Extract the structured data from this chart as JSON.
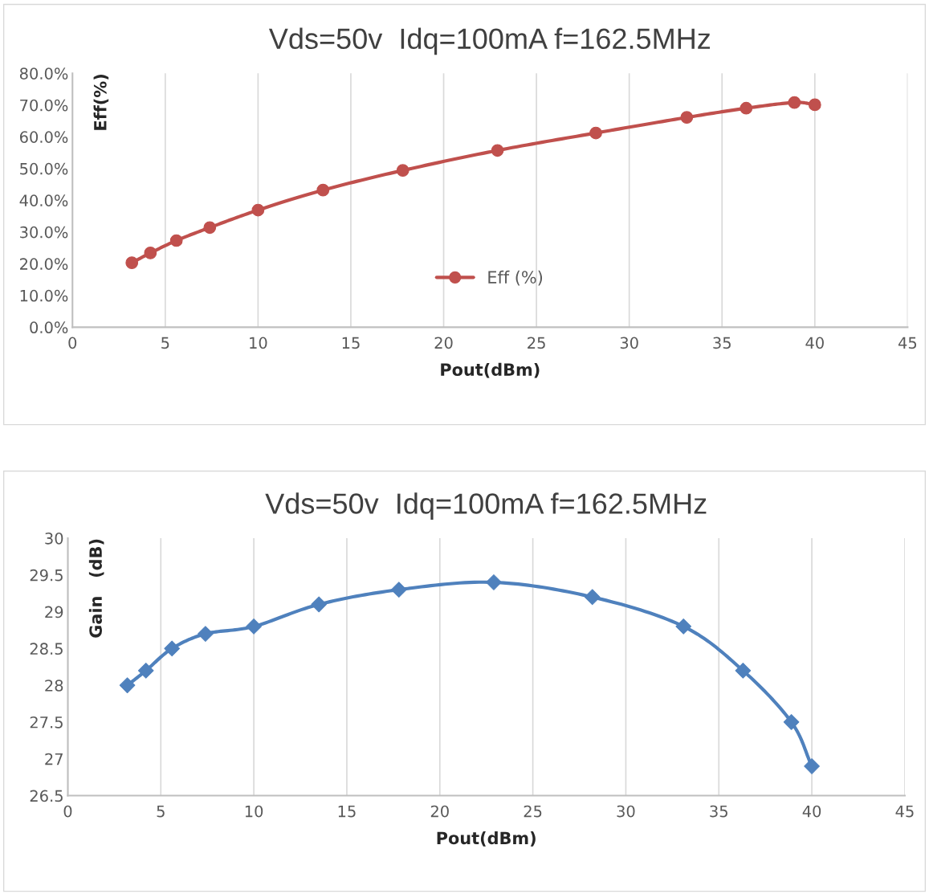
{
  "chart_data": [
    {
      "type": "line",
      "title": "Vds=50v  Idq=100mA f=162.5MHz",
      "xlabel": "Pout(dBm)",
      "ylabel": "Eff(%)",
      "x": [
        3.2,
        4.2,
        5.6,
        7.4,
        10,
        13.5,
        17.8,
        22.9,
        28.2,
        33.1,
        36.3,
        38.9,
        40
      ],
      "series": [
        {
          "name": "Eff (%)",
          "color": "#c0504d",
          "values": [
            20.3,
            23.4,
            27.3,
            31.4,
            36.9,
            43.2,
            49.4,
            55.7,
            61.2,
            66.1,
            69.0,
            70.8,
            70.1
          ]
        }
      ],
      "xlim": [
        0,
        45
      ],
      "xticks": [
        0,
        5,
        10,
        15,
        20,
        25,
        30,
        35,
        40,
        45
      ],
      "ylim": [
        0,
        80
      ],
      "yticks": [
        {
          "value": 0,
          "label": "0.0%"
        },
        {
          "value": 10,
          "label": "10.0%"
        },
        {
          "value": 20,
          "label": "20.0%"
        },
        {
          "value": 30,
          "label": "30.0%"
        },
        {
          "value": 40,
          "label": "40.0%"
        },
        {
          "value": 50,
          "label": "50.0%"
        },
        {
          "value": 60,
          "label": "60.0%"
        },
        {
          "value": 70,
          "label": "70.0%"
        },
        {
          "value": 80,
          "label": "80.0%"
        }
      ],
      "grid": "x",
      "legend": "bottom",
      "marker": "circle",
      "line_style": "solid"
    },
    {
      "type": "line",
      "title": "Vds=50v  Idq=100mA f=162.5MHz",
      "xlabel": "Pout(dBm)",
      "ylabel": "Gain   (dB)",
      "x": [
        3.2,
        4.2,
        5.6,
        7.4,
        10,
        13.5,
        17.8,
        22.9,
        28.2,
        33.1,
        36.3,
        38.9,
        40
      ],
      "series": [
        {
          "color": "#4f81bd",
          "values": [
            28.0,
            28.2,
            28.5,
            28.7,
            28.8,
            29.1,
            29.3,
            29.4,
            29.2,
            28.8,
            28.2,
            27.5,
            26.9
          ]
        }
      ],
      "xlim": [
        0,
        45
      ],
      "xticks": [
        0,
        5,
        10,
        15,
        20,
        25,
        30,
        35,
        40,
        45
      ],
      "ylim": [
        26.5,
        30
      ],
      "yticks": [
        26.5,
        27,
        27.5,
        28,
        28.5,
        29,
        29.5,
        30
      ],
      "grid": "x",
      "marker": "diamond",
      "line_style": "solid"
    }
  ]
}
